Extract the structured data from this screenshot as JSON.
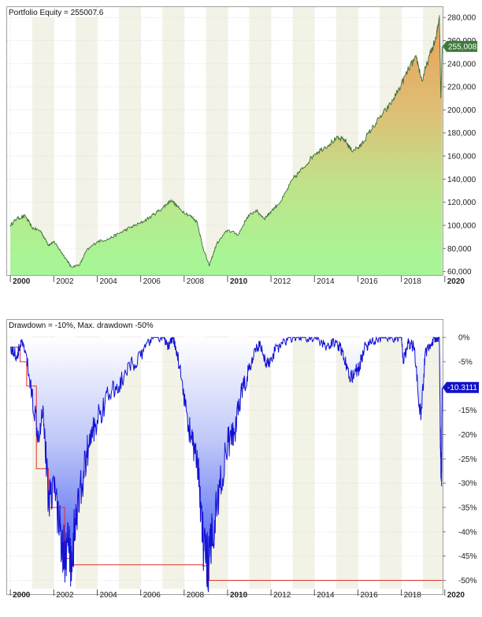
{
  "chart_data": [
    {
      "type": "area",
      "title": "Portfolio Equity = 255007.6",
      "current_value_label": "255,008",
      "x_range": [
        1999.85,
        2019.9
      ],
      "ylim": [
        57000,
        289000
      ],
      "y_ticks": [
        60000,
        80000,
        100000,
        120000,
        140000,
        160000,
        180000,
        200000,
        220000,
        240000,
        260000,
        280000
      ],
      "y_tick_labels": [
        "60,000",
        "80,000",
        "100,000",
        "120,000",
        "140,000",
        "160,000",
        "180,000",
        "200,000",
        "220,000",
        "240,000",
        "260,000",
        "280,000"
      ],
      "x_ticks": [
        2000,
        2002,
        2004,
        2006,
        2008,
        2010,
        2012,
        2014,
        2016,
        2018,
        2020
      ],
      "x_tick_labels": [
        "2000",
        "2002",
        "2004",
        "2006",
        "2008",
        "2010",
        "2012",
        "2014",
        "2016",
        "2018",
        "2020"
      ],
      "series": [
        {
          "x": [
            2000.0,
            2000.3,
            2000.7,
            2001.0,
            2001.4,
            2001.75,
            2002.0,
            2002.3,
            2002.6,
            2002.8,
            2003.2,
            2003.5,
            2004.0,
            2004.5,
            2005.0,
            2005.5,
            2006.0,
            2006.5,
            2007.0,
            2007.4,
            2007.8,
            2008.3,
            2008.6,
            2008.85,
            2009.15,
            2009.5,
            2010.0,
            2010.5,
            2010.9,
            2011.3,
            2011.7,
            2012.0,
            2012.5,
            2013.0,
            2013.5,
            2014.0,
            2014.5,
            2015.0,
            2015.4,
            2015.7,
            2016.1,
            2016.5,
            2017.0,
            2017.5,
            2018.0,
            2018.4,
            2018.7,
            2018.95,
            2019.3,
            2019.6,
            2019.75,
            2019.82,
            2019.88
          ],
          "y": [
            100000,
            106000,
            108000,
            98000,
            95000,
            83000,
            86000,
            78000,
            70000,
            64000,
            66000,
            78000,
            86000,
            88000,
            93000,
            98000,
            102000,
            108000,
            115000,
            122000,
            114000,
            108000,
            103000,
            82000,
            65000,
            84000,
            96000,
            92000,
            107000,
            113000,
            106000,
            112000,
            122000,
            140000,
            150000,
            162000,
            168000,
            175000,
            174000,
            165000,
            168000,
            180000,
            193000,
            205000,
            222000,
            238000,
            245000,
            225000,
            247000,
            262000,
            282000,
            210000,
            255000
          ]
        }
      ]
    },
    {
      "type": "area",
      "title": "Drawdown = -10%, Max. drawdown -50%",
      "current_value_label": "-10.3111",
      "x_range": [
        1999.85,
        2019.9
      ],
      "ylim": [
        -51.7,
        0.2
      ],
      "y_ticks": [
        0,
        -5,
        -10,
        -15,
        -20,
        -25,
        -30,
        -35,
        -40,
        -45,
        -50
      ],
      "y_tick_labels": [
        "0%",
        "-5%",
        "-10%",
        "-15%",
        "-20%",
        "-25%",
        "-30%",
        "-35%",
        "-40%",
        "-45%",
        "-50%"
      ],
      "x_ticks": [
        2000,
        2002,
        2004,
        2006,
        2008,
        2010,
        2012,
        2014,
        2016,
        2018,
        2020
      ],
      "x_tick_labels": [
        "2000",
        "2002",
        "2004",
        "2006",
        "2008",
        "2010",
        "2012",
        "2014",
        "2016",
        "2018",
        "2020"
      ],
      "series": [
        {
          "name": "drawdown",
          "x": [
            2000.0,
            2000.3,
            2000.5,
            2000.7,
            2001.0,
            2001.3,
            2001.5,
            2001.75,
            2002.0,
            2002.3,
            2002.5,
            2002.7,
            2002.8,
            2003.0,
            2003.3,
            2003.6,
            2004.0,
            2004.5,
            2005.0,
            2005.5,
            2006.0,
            2006.5,
            2007.0,
            2007.3,
            2007.5,
            2007.8,
            2008.2,
            2008.5,
            2008.7,
            2008.9,
            2009.15,
            2009.3,
            2009.6,
            2010.0,
            2010.3,
            2010.6,
            2010.9,
            2011.2,
            2011.5,
            2011.8,
            2012.0,
            2012.5,
            2013.0,
            2013.5,
            2014.0,
            2014.5,
            2015.0,
            2015.3,
            2015.6,
            2016.0,
            2016.3,
            2016.6,
            2017.0,
            2017.5,
            2018.0,
            2018.1,
            2018.3,
            2018.6,
            2018.9,
            2019.1,
            2019.4,
            2019.6,
            2019.75,
            2019.8,
            2019.85,
            2019.88
          ],
          "y": [
            -2,
            -4,
            -1,
            -3,
            -12,
            -20,
            -14,
            -33,
            -30,
            -40,
            -45,
            -43,
            -47,
            -38,
            -30,
            -22,
            -17,
            -12,
            -10,
            -6,
            -4,
            0,
            0,
            -2,
            0,
            -6,
            -18,
            -24,
            -30,
            -44,
            -47,
            -40,
            -32,
            -22,
            -20,
            -12,
            -8,
            -4,
            -1,
            -6,
            -4,
            -1,
            0,
            0,
            0,
            -2,
            -1,
            -3,
            -8,
            -7,
            -2,
            -1,
            0,
            0,
            0,
            -5,
            -1,
            -2,
            -17,
            -3,
            -1,
            0,
            0,
            -23,
            -29,
            -10.3
          ]
        },
        {
          "name": "max drawdown",
          "x": [
            2000.0,
            2000.45,
            2000.45,
            2000.75,
            2000.75,
            2001.2,
            2001.2,
            2001.75,
            2001.75,
            2002.5,
            2002.5,
            2002.75,
            2002.75,
            2008.85,
            2008.85,
            2009.15,
            2009.15,
            2019.88
          ],
          "y": [
            -2,
            -2,
            -5,
            -5,
            -10,
            -10,
            -27,
            -27,
            -35,
            -35,
            -45.5,
            -45.5,
            -46.8,
            -46.8,
            -47,
            -47,
            -50,
            -50
          ]
        }
      ]
    }
  ]
}
